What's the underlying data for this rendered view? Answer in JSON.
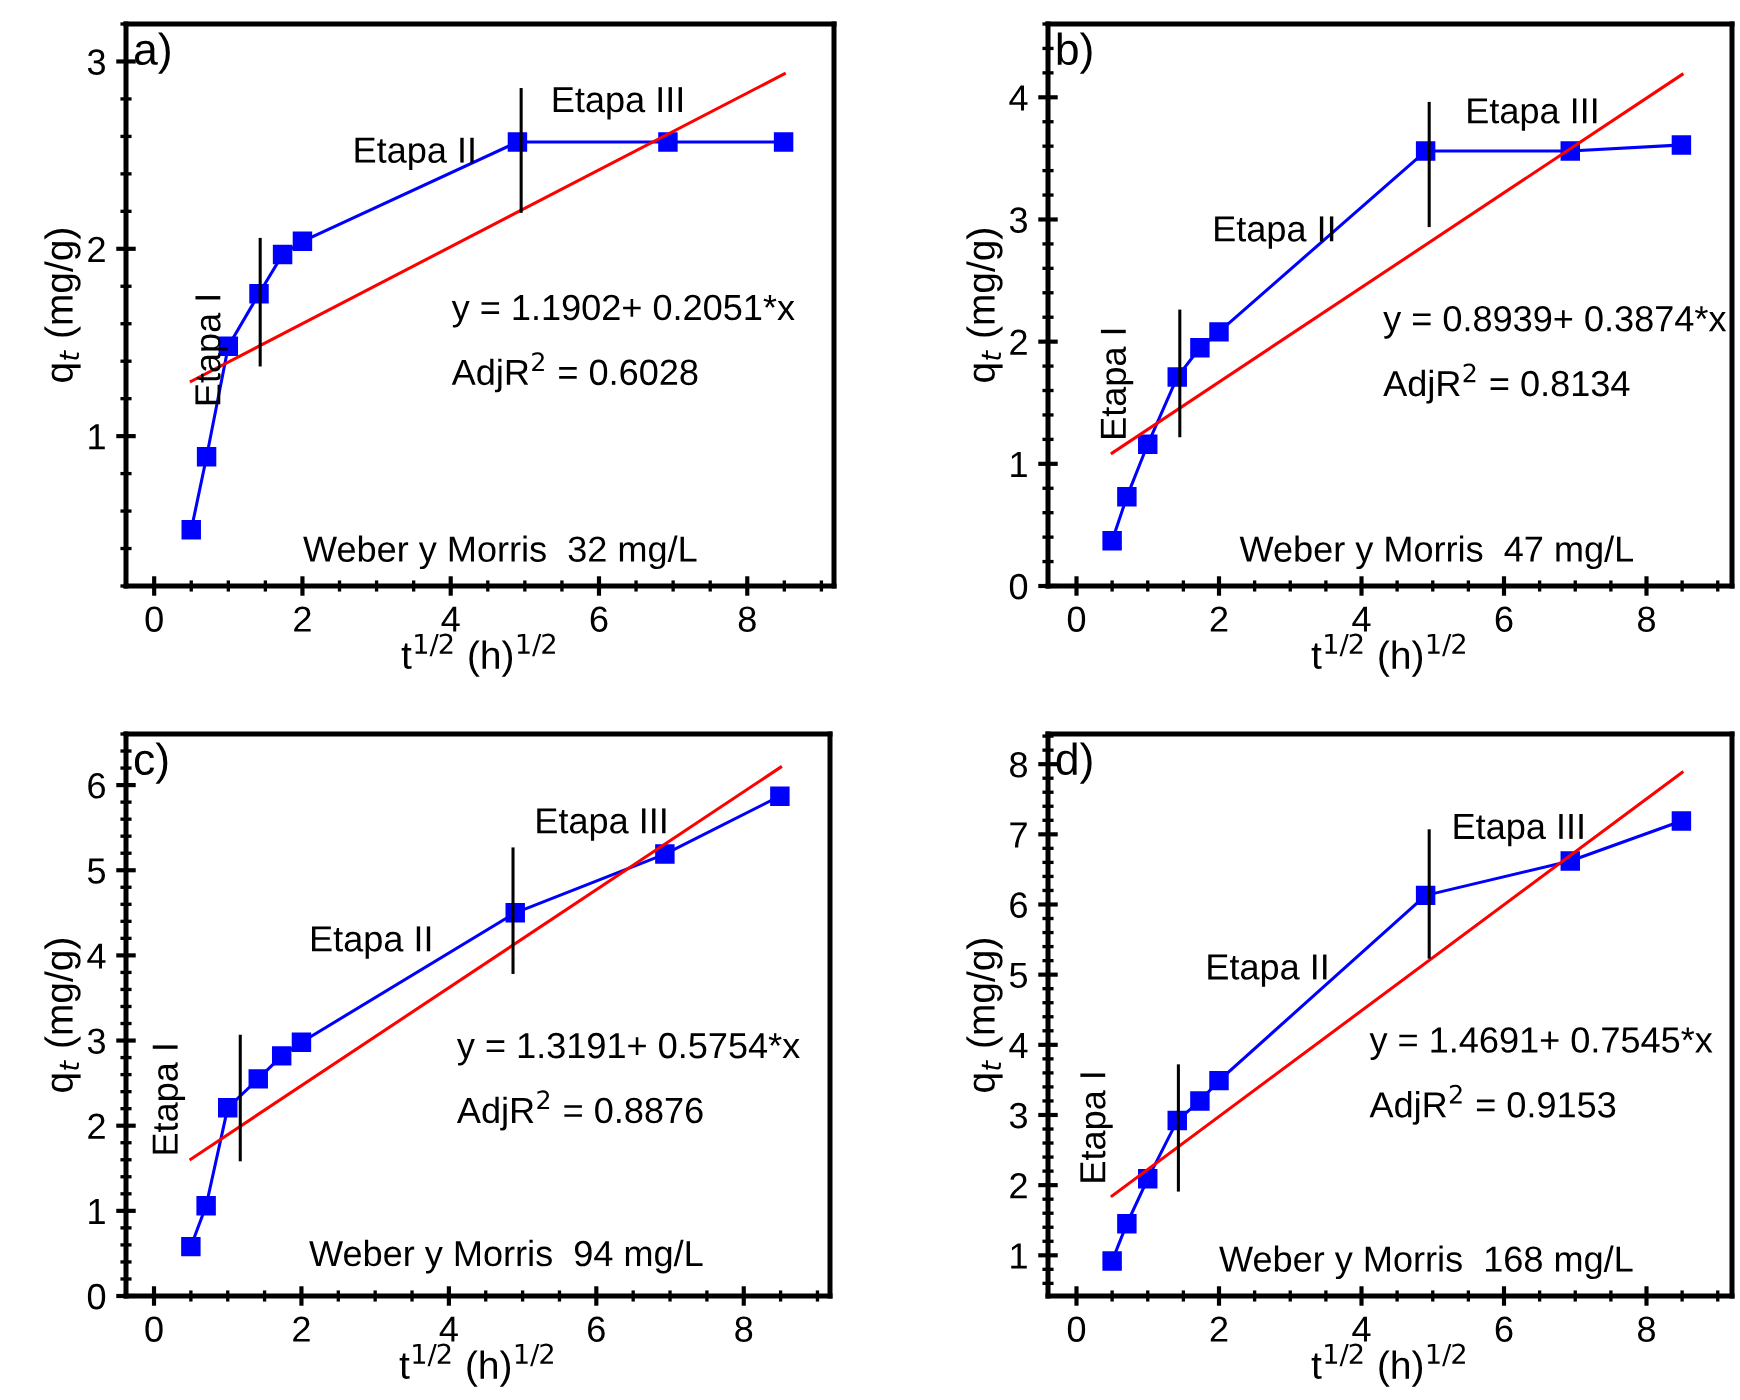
{
  "chart_data": [
    {
      "type": "line",
      "title": "a)",
      "xlabel": "t$^{1/2}$ (h)$^{1/2}$",
      "ylabel": "q$_{t}$ (mg/g)",
      "xlim": [
        -0.38,
        9.17
      ],
      "xticks": [
        0,
        2,
        4,
        6,
        8
      ],
      "ylim": [
        0.2,
        3.2
      ],
      "yticks": [
        1,
        2,
        3
      ],
      "grid": false,
      "legend": false,
      "series": [
        {
          "color": "#0000ff",
          "marker": "square",
          "x": [
            0.5,
            0.707,
            1,
            1.414,
            1.732,
            2,
            4.9,
            6.93,
            8.49
          ],
          "values": [
            0.5,
            0.89,
            1.48,
            1.76,
            1.97,
            2.04,
            2.57,
            2.57,
            2.57
          ]
        },
        {
          "color": "#ff0000",
          "marker": "none",
          "x": [
            0.5,
            8.5
          ],
          "values": [
            1.293,
            2.934
          ]
        },
        {
          "color": "#000000",
          "marker": "none",
          "x": [
            1.43,
            1.43
          ],
          "values": [
            1.38,
            2.05
          ]
        },
        {
          "color": "#000000",
          "marker": "none",
          "x": [
            4.95,
            4.95
          ],
          "values": [
            2.2,
            2.85
          ]
        }
      ],
      "annotations": [
        "Etapa I",
        "Etapa II",
        "Etapa III",
        "y = 1.1902+ 0.2051*x",
        "AdjR$^{2}$ = 0.6028",
        "Weber y Morris  32 mg/L"
      ]
    },
    {
      "type": "line",
      "title": "b)",
      "xlabel": "t$^{1/2}$ (h)$^{1/2}$",
      "ylabel": "q$_{t}$ (mg/g)",
      "xlim": [
        -0.4,
        9.2
      ],
      "xticks": [
        0,
        2,
        4,
        6,
        8
      ],
      "ylim": [
        0,
        4.6
      ],
      "yticks": [
        0,
        1,
        2,
        3,
        4
      ],
      "grid": false,
      "legend": false,
      "series": [
        {
          "color": "#0000ff",
          "marker": "square",
          "x": [
            0.5,
            0.707,
            1,
            1.414,
            1.732,
            2,
            4.9,
            6.93,
            8.49
          ],
          "values": [
            0.37,
            0.73,
            1.16,
            1.71,
            1.95,
            2.08,
            3.56,
            3.56,
            3.61
          ]
        },
        {
          "color": "#ff0000",
          "marker": "none",
          "x": [
            0.5,
            8.5
          ],
          "values": [
            1.088,
            4.187
          ]
        },
        {
          "color": "#000000",
          "marker": "none",
          "x": [
            1.45,
            1.45
          ],
          "values": [
            1.23,
            2.25
          ]
        },
        {
          "color": "#000000",
          "marker": "none",
          "x": [
            4.95,
            4.95
          ],
          "values": [
            2.95,
            3.95
          ]
        }
      ],
      "annotations": [
        "Etapa I",
        "Etapa II",
        "Etapa III",
        "y = 0.8939+ 0.3874*x",
        "AdjR$^{2}$ = 0.8134",
        "Weber y Morris  47 mg/L"
      ]
    },
    {
      "type": "line",
      "title": "c)",
      "xlabel": "t$^{1/2}$ (h)$^{1/2}$",
      "ylabel": "q$_{t}$ (mg/g)",
      "xlim": [
        -0.38,
        9.17
      ],
      "xticks": [
        0,
        2,
        4,
        6,
        8
      ],
      "ylim": [
        0,
        6.6
      ],
      "yticks": [
        0,
        1,
        2,
        3,
        4,
        5,
        6
      ],
      "grid": false,
      "legend": false,
      "series": [
        {
          "color": "#0000ff",
          "marker": "square",
          "x": [
            0.5,
            0.707,
            1,
            1.414,
            1.732,
            2,
            4.9,
            6.93,
            8.49
          ],
          "values": [
            0.58,
            1.06,
            2.21,
            2.55,
            2.82,
            2.98,
            4.5,
            5.19,
            5.87
          ]
        },
        {
          "color": "#ff0000",
          "marker": "none",
          "x": [
            0.5,
            8.5
          ],
          "values": [
            1.607,
            6.21
          ]
        },
        {
          "color": "#000000",
          "marker": "none",
          "x": [
            1.17,
            1.17
          ],
          "values": [
            1.6,
            3.05
          ]
        },
        {
          "color": "#000000",
          "marker": "none",
          "x": [
            4.87,
            4.87
          ],
          "values": [
            3.8,
            5.25
          ]
        }
      ],
      "annotations": [
        "Etapa I",
        "Etapa II",
        "Etapa III",
        "y = 1.3191+ 0.5754*x",
        "AdjR$^{2}$ = 0.8876",
        "Weber y Morris  94 mg/L"
      ]
    },
    {
      "type": "line",
      "title": "d)",
      "xlabel": "t$^{1/2}$ (h)$^{1/2}$",
      "ylabel": "q$_{t}$ (mg/g)",
      "xlim": [
        -0.4,
        9.2
      ],
      "xticks": [
        0,
        2,
        4,
        6,
        8
      ],
      "ylim": [
        0.42,
        8.43
      ],
      "yticks": [
        1,
        2,
        3,
        4,
        5,
        6,
        7,
        8
      ],
      "grid": false,
      "legend": false,
      "series": [
        {
          "color": "#0000ff",
          "marker": "square",
          "x": [
            0.5,
            0.707,
            1,
            1.414,
            1.732,
            2,
            4.9,
            6.93,
            8.49
          ],
          "values": [
            0.92,
            1.45,
            2.09,
            2.92,
            3.2,
            3.49,
            6.13,
            6.62,
            7.19
          ]
        },
        {
          "color": "#ff0000",
          "marker": "none",
          "x": [
            0.5,
            8.5
          ],
          "values": [
            1.846,
            7.882
          ]
        },
        {
          "color": "#000000",
          "marker": "none",
          "x": [
            1.43,
            1.43
          ],
          "values": [
            1.93,
            3.7
          ]
        },
        {
          "color": "#000000",
          "marker": "none",
          "x": [
            4.95,
            4.95
          ],
          "values": [
            5.25,
            7.05
          ]
        }
      ],
      "annotations": [
        "Etapa I",
        "Etapa II",
        "Etapa III",
        "y = 1.4691+ 0.7545*x",
        "AdjR$^{2}$ = 0.9153",
        "Weber y Morris  168 mg/L"
      ]
    }
  ]
}
